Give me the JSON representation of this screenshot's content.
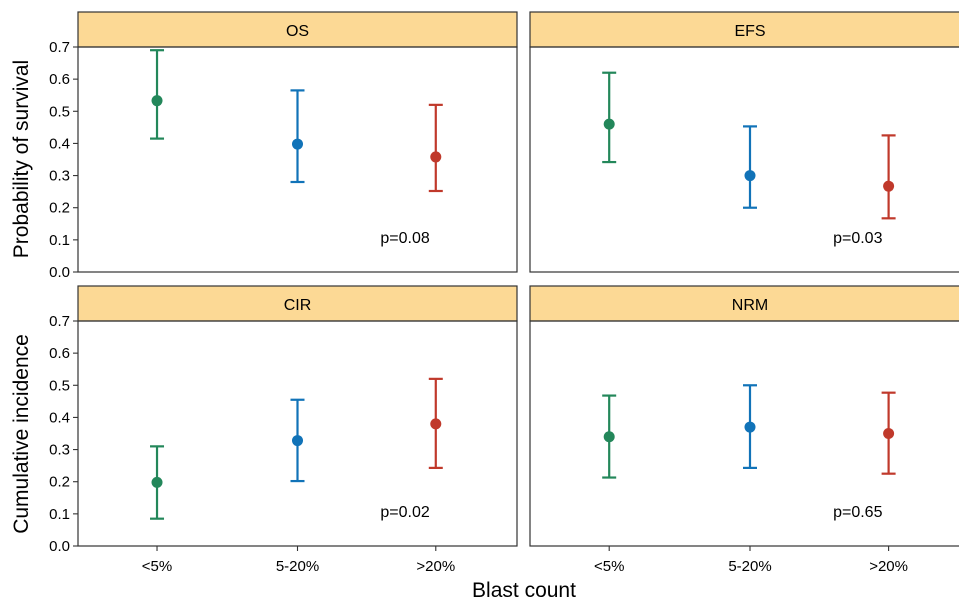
{
  "chart_data": {
    "type": "scatter",
    "subtype": "point-range (estimate with error bars), faceted 2x2",
    "xlabel": "Blast count",
    "categories": [
      "<5%",
      "5-20%",
      ">20%"
    ],
    "category_colors": [
      "#23875a",
      "#1173b8",
      "#c0392b"
    ],
    "strip_color": "#fcd995",
    "ylim": [
      0,
      0.7
    ],
    "yticks": [
      "0.0",
      "0.1",
      "0.2",
      "0.3",
      "0.4",
      "0.5",
      "0.6",
      "0.7"
    ],
    "grid": false,
    "rows": [
      {
        "ylabel": "Probability of survival",
        "panels": [
          "OS",
          "EFS"
        ]
      },
      {
        "ylabel": "Cumulative incidence",
        "panels": [
          "CIR",
          "NRM"
        ]
      }
    ],
    "panels": [
      {
        "title": "OS",
        "pvalue": "p=0.08",
        "estimates": [
          0.533,
          0.398,
          0.358
        ],
        "lower": [
          0.415,
          0.28,
          0.252
        ],
        "upper": [
          0.69,
          0.565,
          0.52
        ]
      },
      {
        "title": "EFS",
        "pvalue": "p=0.03",
        "estimates": [
          0.46,
          0.3,
          0.267
        ],
        "lower": [
          0.342,
          0.2,
          0.167
        ],
        "upper": [
          0.62,
          0.453,
          0.425
        ]
      },
      {
        "title": "CIR",
        "pvalue": "p=0.02",
        "estimates": [
          0.198,
          0.328,
          0.38
        ],
        "lower": [
          0.085,
          0.202,
          0.243
        ],
        "upper": [
          0.31,
          0.455,
          0.52
        ]
      },
      {
        "title": "NRM",
        "pvalue": "p=0.65",
        "estimates": [
          0.34,
          0.37,
          0.35
        ],
        "lower": [
          0.213,
          0.243,
          0.225
        ],
        "upper": [
          0.468,
          0.5,
          0.477
        ]
      }
    ]
  }
}
